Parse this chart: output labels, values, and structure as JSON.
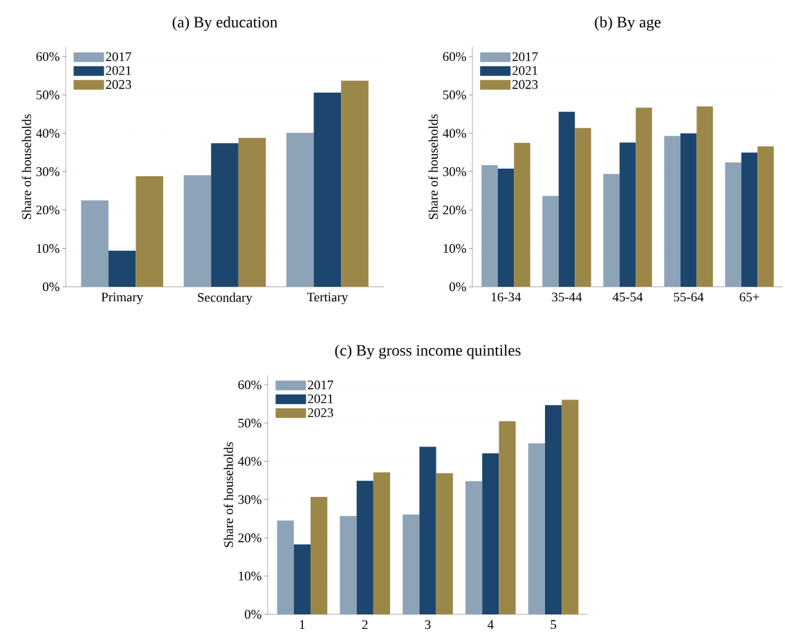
{
  "chart_data": [
    {
      "type": "bar",
      "title": "(a)  By education",
      "ylabel": "Share of households",
      "categories": [
        "Primary",
        "Secondary",
        "Tertiary"
      ],
      "series": [
        {
          "name": "2017",
          "color": "#8da3b8",
          "values": [
            22.5,
            29.1,
            40.1
          ]
        },
        {
          "name": "2021",
          "color": "#1c466e",
          "values": [
            9.4,
            37.4,
            50.6
          ]
        },
        {
          "name": "2023",
          "color": "#9b8748",
          "values": [
            28.8,
            38.8,
            53.7
          ]
        }
      ],
      "ylim": [
        0,
        62.5
      ],
      "yticks": [
        {
          "value": 0,
          "label": "0%"
        },
        {
          "value": 10,
          "label": "10%"
        },
        {
          "value": 20,
          "label": "20%"
        },
        {
          "value": 30,
          "label": "30%"
        },
        {
          "value": 40,
          "label": "40%"
        },
        {
          "value": 50,
          "label": "50%"
        },
        {
          "value": 60,
          "label": "60%"
        }
      ],
      "grid": "y",
      "legend": "top left"
    },
    {
      "type": "bar",
      "title": "(b)  By age",
      "ylabel": "Share of households",
      "categories": [
        "16-34",
        "35-44",
        "45-54",
        "55-64",
        "65+"
      ],
      "series": [
        {
          "name": "2017",
          "color": "#8da3b8",
          "values": [
            31.7,
            23.7,
            29.4,
            39.3,
            32.4
          ]
        },
        {
          "name": "2021",
          "color": "#1c466e",
          "values": [
            30.8,
            45.6,
            37.6,
            40.0,
            35.0
          ]
        },
        {
          "name": "2023",
          "color": "#9b8748",
          "values": [
            37.5,
            41.4,
            46.7,
            47.0,
            36.6
          ]
        }
      ],
      "ylim": [
        0,
        62.5
      ],
      "yticks": [
        {
          "value": 0,
          "label": "0%"
        },
        {
          "value": 10,
          "label": "10%"
        },
        {
          "value": 20,
          "label": "20%"
        },
        {
          "value": 30,
          "label": "30%"
        },
        {
          "value": 40,
          "label": "40%"
        },
        {
          "value": 50,
          "label": "50%"
        },
        {
          "value": 60,
          "label": "60%"
        }
      ],
      "grid": "y",
      "legend": "top left"
    },
    {
      "type": "bar",
      "title": "(c)  By gross income quintiles",
      "ylabel": "Share of households",
      "categories": [
        "1",
        "2",
        "3",
        "4",
        "5"
      ],
      "series": [
        {
          "name": "2017",
          "color": "#8da3b8",
          "values": [
            24.5,
            25.7,
            26.1,
            34.8,
            44.7
          ]
        },
        {
          "name": "2021",
          "color": "#1c466e",
          "values": [
            18.3,
            34.9,
            43.8,
            42.1,
            54.7
          ]
        },
        {
          "name": "2023",
          "color": "#9b8748",
          "values": [
            30.7,
            37.1,
            36.9,
            50.5,
            56.1
          ]
        }
      ],
      "ylim": [
        0,
        62.5
      ],
      "yticks": [
        {
          "value": 0,
          "label": "0%"
        },
        {
          "value": 10,
          "label": "10%"
        },
        {
          "value": 20,
          "label": "20%"
        },
        {
          "value": 30,
          "label": "30%"
        },
        {
          "value": 40,
          "label": "40%"
        },
        {
          "value": 50,
          "label": "50%"
        },
        {
          "value": 60,
          "label": "60%"
        }
      ],
      "grid": "y",
      "legend": "top left"
    }
  ]
}
